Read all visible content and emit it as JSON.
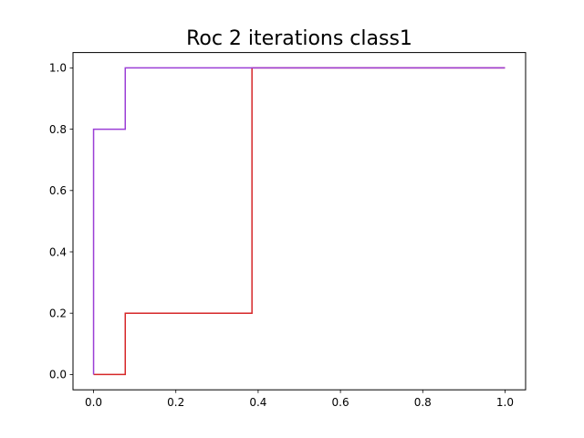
{
  "chart_data": {
    "type": "line",
    "title": "Roc 2 iterations class1",
    "xlabel": "",
    "ylabel": "",
    "xlim": [
      -0.05,
      1.05
    ],
    "ylim": [
      -0.05,
      1.05
    ],
    "xticks": [
      0.0,
      0.2,
      0.4,
      0.6,
      0.8,
      1.0
    ],
    "yticks": [
      0.0,
      0.2,
      0.4,
      0.6,
      0.8,
      1.0
    ],
    "xtick_labels": [
      "0.0",
      "0.2",
      "0.4",
      "0.6",
      "0.8",
      "1.0"
    ],
    "ytick_labels": [
      "0.0",
      "0.2",
      "0.4",
      "0.6",
      "0.8",
      "1.0"
    ],
    "grid": false,
    "legend": false,
    "series": [
      {
        "color": "#d62728",
        "x": [
          0.0,
          0.0,
          0.077,
          0.077,
          0.385,
          0.385,
          1.0
        ],
        "y": [
          0.0,
          0.0,
          0.0,
          0.2,
          0.2,
          1.0,
          1.0
        ]
      },
      {
        "color": "#9b3fd6",
        "x": [
          0.0,
          0.0,
          0.077,
          0.077,
          1.0
        ],
        "y": [
          0.0,
          0.8,
          0.8,
          1.0,
          1.0
        ]
      }
    ]
  }
}
